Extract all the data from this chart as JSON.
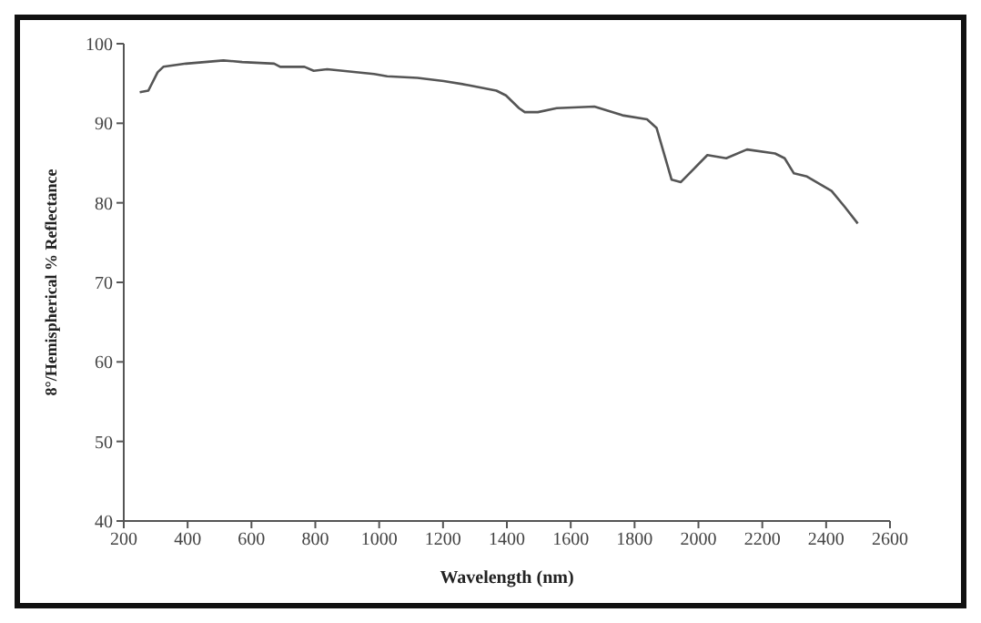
{
  "chart_data": {
    "type": "line",
    "xlabel": "Wavelength (nm)",
    "ylabel": "8°/Hemispherical % Reflectance",
    "x": [
      250,
      277,
      306,
      324,
      395,
      512,
      571,
      671,
      690,
      766,
      795,
      837,
      984,
      1025,
      1120,
      1202,
      1279,
      1367,
      1397,
      1438,
      1456,
      1497,
      1556,
      1674,
      1762,
      1839,
      1869,
      1916,
      1945,
      2028,
      2087,
      2152,
      2240,
      2270,
      2299,
      2340,
      2417,
      2458,
      2499
    ],
    "series": [
      {
        "color": "#555555",
        "values": [
          93.9,
          94.1,
          96.4,
          97.1,
          97.5,
          97.9,
          97.7,
          97.5,
          97.1,
          97.1,
          96.6,
          96.8,
          96.2,
          95.9,
          95.7,
          95.3,
          94.8,
          94.1,
          93.5,
          91.9,
          91.4,
          91.4,
          91.9,
          92.1,
          91.0,
          90.5,
          89.4,
          82.9,
          82.6,
          86.0,
          85.6,
          86.7,
          86.2,
          85.6,
          83.7,
          83.3,
          81.5,
          79.5,
          77.4
        ]
      }
    ],
    "xlim": [
      200,
      2600
    ],
    "xticks": [
      200,
      400,
      600,
      800,
      1000,
      1200,
      1400,
      1600,
      1800,
      2000,
      2200,
      2400,
      2600
    ],
    "ylim": [
      40,
      100
    ],
    "yticks": [
      40,
      50,
      60,
      70,
      80,
      90,
      100
    ],
    "grid": false,
    "legend": false,
    "marker": "none",
    "line_style": "solid"
  }
}
